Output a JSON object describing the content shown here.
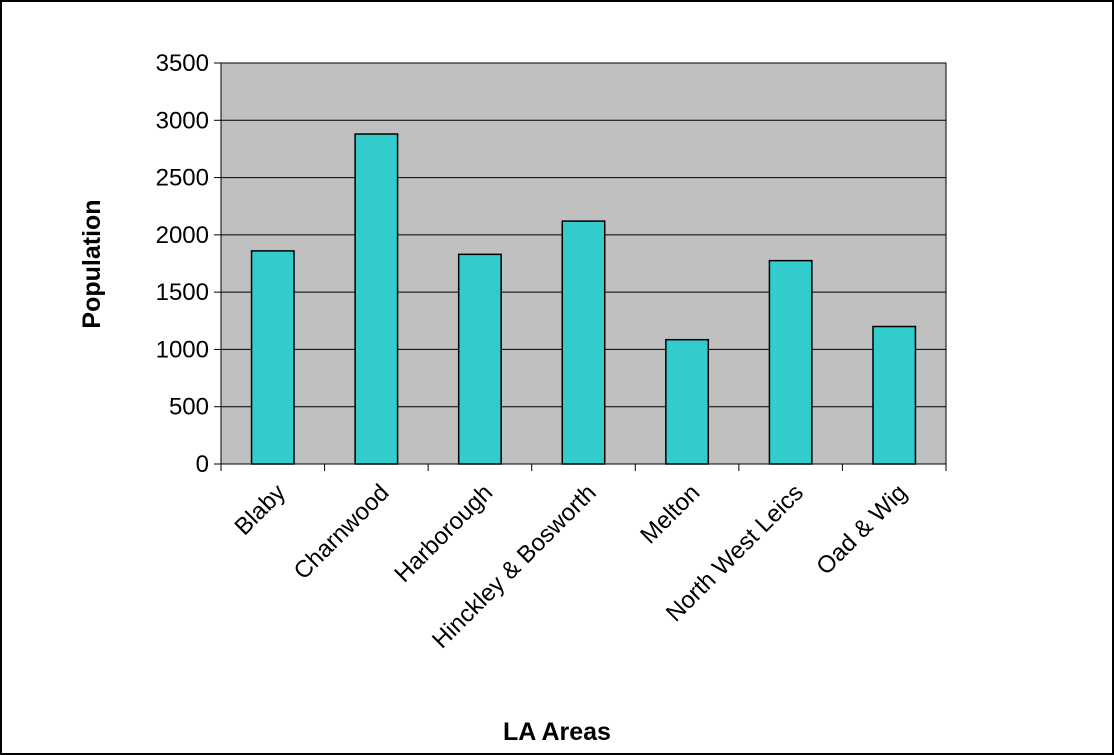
{
  "chart_data": {
    "type": "bar",
    "title": "",
    "xlabel": "LA Areas",
    "ylabel": "Population",
    "categories": [
      "Blaby",
      "Charnwood",
      "Harborough",
      "Hinckley & Bosworth",
      "Melton",
      "North West Leics",
      "Oad & Wig"
    ],
    "values": [
      1860,
      2880,
      1830,
      2120,
      1085,
      1775,
      1200
    ],
    "ylim": [
      0,
      3500
    ],
    "yticks": [
      0,
      500,
      1000,
      1500,
      2000,
      2500,
      3000,
      3500
    ],
    "ytick_labels": [
      "0",
      "500",
      "1000",
      "1500",
      "2000",
      "2500",
      "3000",
      "3500"
    ],
    "grid": true,
    "legend": "none",
    "colors": {
      "bar_fill": "#33CCCC",
      "bar_stroke": "#000000",
      "plot_background": "#C0C0C0",
      "gridline": "#000000",
      "frame": "#000000"
    }
  }
}
